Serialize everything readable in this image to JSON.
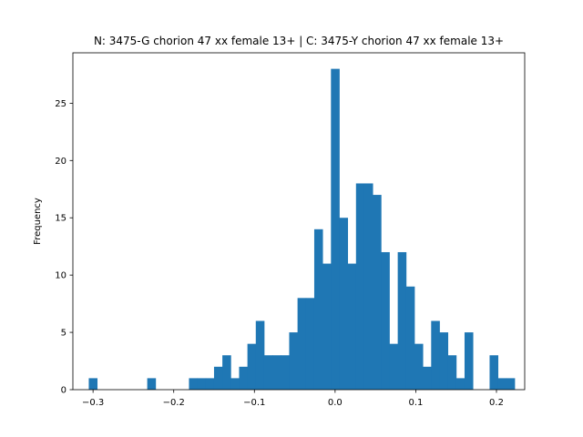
{
  "chart_data": {
    "type": "bar",
    "title": "N: 3475-G chorion 47 xx female 13+ | C: 3475-Y chorion 47 xx female 13+",
    "xlabel": "",
    "ylabel": "Frequency",
    "xlim": [
      -0.325,
      0.235
    ],
    "ylim": [
      0,
      29.4
    ],
    "x_ticks": [
      -0.3,
      -0.2,
      -0.1,
      0.0,
      0.1,
      0.2
    ],
    "x_tick_labels": [
      "−0.3",
      "−0.2",
      "−0.1",
      "0.0",
      "0.1",
      "0.2"
    ],
    "y_ticks": [
      0,
      5,
      10,
      15,
      20,
      25
    ],
    "y_tick_labels": [
      "0",
      "5",
      "10",
      "15",
      "20",
      "25"
    ],
    "bin_start": -0.3053,
    "bin_width": 0.01035,
    "values": [
      1,
      0,
      0,
      0,
      0,
      0,
      0,
      1,
      0,
      0,
      0,
      0,
      1,
      1,
      1,
      2,
      3,
      1,
      2,
      4,
      6,
      3,
      3,
      3,
      5,
      8,
      8,
      14,
      11,
      28,
      15,
      11,
      18,
      18,
      17,
      12,
      4,
      12,
      9,
      4,
      2,
      6,
      5,
      3,
      1,
      5,
      0,
      0,
      3,
      1,
      1
    ],
    "color": "#1f77b4",
    "grid": false
  }
}
